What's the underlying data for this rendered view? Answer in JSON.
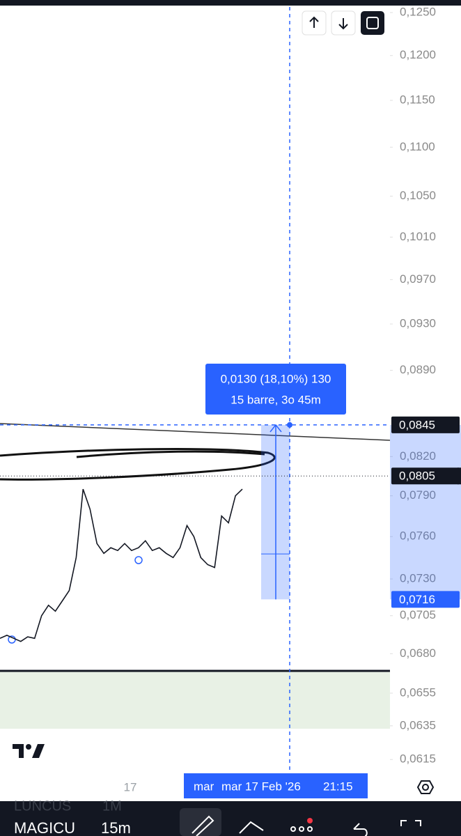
{
  "chart_data": {
    "type": "line",
    "log_scale": true,
    "color": "#131722",
    "ylim": [
      0.0607,
      0.1265
    ],
    "yticks": [
      {
        "value": 0.125,
        "label": "0,1250"
      },
      {
        "value": 0.12,
        "label": "0,1200"
      },
      {
        "value": 0.115,
        "label": "0,1150"
      },
      {
        "value": 0.11,
        "label": "0,1100"
      },
      {
        "value": 0.105,
        "label": "0,1050"
      },
      {
        "value": 0.101,
        "label": "0,1010"
      },
      {
        "value": 0.097,
        "label": "0,0970"
      },
      {
        "value": 0.093,
        "label": "0,0930"
      },
      {
        "value": 0.089,
        "label": "0,0890"
      },
      {
        "value": 0.082,
        "label": "0,0820"
      },
      {
        "value": 0.079,
        "label": "0,0790"
      },
      {
        "value": 0.076,
        "label": "0,0760"
      },
      {
        "value": 0.073,
        "label": "0,0730"
      },
      {
        "value": 0.0705,
        "label": "0,0705"
      },
      {
        "value": 0.068,
        "label": "0,0680"
      },
      {
        "value": 0.0655,
        "label": "0,0655"
      },
      {
        "value": 0.0635,
        "label": "0,0635"
      },
      {
        "value": 0.0615,
        "label": "0,0615"
      }
    ],
    "values": [
      0.069,
      0.0692,
      0.069,
      0.0688,
      0.0691,
      0.069,
      0.0705,
      0.0712,
      0.0708,
      0.0715,
      0.0722,
      0.0745,
      0.0795,
      0.078,
      0.0755,
      0.0748,
      0.0752,
      0.075,
      0.0755,
      0.075,
      0.0752,
      0.0757,
      0.075,
      0.0752,
      0.0748,
      0.0745,
      0.0752,
      0.0768,
      0.076,
      0.0745,
      0.074,
      0.0738,
      0.0775,
      0.077,
      0.079,
      0.0795
    ],
    "price_labels": [
      {
        "value": 0.0845,
        "label": "0,0845"
      },
      {
        "value": 0.0805,
        "label": "0,0805"
      },
      {
        "value": 0.0716,
        "label": "0,0716"
      }
    ],
    "measure": {
      "line1": "0,0130 (18,10%) 130",
      "line2": "15 barre, 3o 45m"
    },
    "time_axis": {
      "day": "17",
      "cursor_prefix": "mar",
      "cursor_date": "mar 17 Feb '26",
      "cursor_time": "21:15"
    },
    "toolbar": {
      "ghost_symbol": "LUNCUS",
      "ghost_interval": "1M",
      "symbol": "MAGICU",
      "interval": "15m"
    }
  }
}
